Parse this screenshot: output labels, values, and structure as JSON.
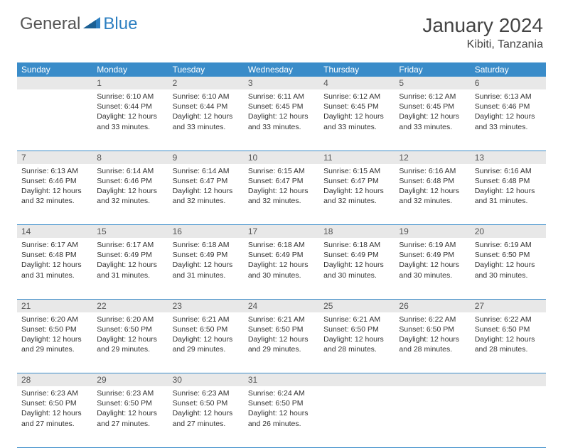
{
  "logo": {
    "general": "General",
    "blue": "Blue"
  },
  "title": "January 2024",
  "location": "Kibiti, Tanzania",
  "colors": {
    "header_bg": "#3a8cc9",
    "header_text": "#ffffff",
    "daynum_bg": "#e8e8e8",
    "rule": "#3a8cc9",
    "logo_blue": "#2d7fc1"
  },
  "weekdays": [
    "Sunday",
    "Monday",
    "Tuesday",
    "Wednesday",
    "Thursday",
    "Friday",
    "Saturday"
  ],
  "weeks": [
    {
      "nums": [
        "",
        "1",
        "2",
        "3",
        "4",
        "5",
        "6"
      ],
      "cells": [
        null,
        {
          "sunrise": "Sunrise: 6:10 AM",
          "sunset": "Sunset: 6:44 PM",
          "day": "Daylight: 12 hours and 33 minutes."
        },
        {
          "sunrise": "Sunrise: 6:10 AM",
          "sunset": "Sunset: 6:44 PM",
          "day": "Daylight: 12 hours and 33 minutes."
        },
        {
          "sunrise": "Sunrise: 6:11 AM",
          "sunset": "Sunset: 6:45 PM",
          "day": "Daylight: 12 hours and 33 minutes."
        },
        {
          "sunrise": "Sunrise: 6:12 AM",
          "sunset": "Sunset: 6:45 PM",
          "day": "Daylight: 12 hours and 33 minutes."
        },
        {
          "sunrise": "Sunrise: 6:12 AM",
          "sunset": "Sunset: 6:45 PM",
          "day": "Daylight: 12 hours and 33 minutes."
        },
        {
          "sunrise": "Sunrise: 6:13 AM",
          "sunset": "Sunset: 6:46 PM",
          "day": "Daylight: 12 hours and 33 minutes."
        }
      ]
    },
    {
      "nums": [
        "7",
        "8",
        "9",
        "10",
        "11",
        "12",
        "13"
      ],
      "cells": [
        {
          "sunrise": "Sunrise: 6:13 AM",
          "sunset": "Sunset: 6:46 PM",
          "day": "Daylight: 12 hours and 32 minutes."
        },
        {
          "sunrise": "Sunrise: 6:14 AM",
          "sunset": "Sunset: 6:46 PM",
          "day": "Daylight: 12 hours and 32 minutes."
        },
        {
          "sunrise": "Sunrise: 6:14 AM",
          "sunset": "Sunset: 6:47 PM",
          "day": "Daylight: 12 hours and 32 minutes."
        },
        {
          "sunrise": "Sunrise: 6:15 AM",
          "sunset": "Sunset: 6:47 PM",
          "day": "Daylight: 12 hours and 32 minutes."
        },
        {
          "sunrise": "Sunrise: 6:15 AM",
          "sunset": "Sunset: 6:47 PM",
          "day": "Daylight: 12 hours and 32 minutes."
        },
        {
          "sunrise": "Sunrise: 6:16 AM",
          "sunset": "Sunset: 6:48 PM",
          "day": "Daylight: 12 hours and 32 minutes."
        },
        {
          "sunrise": "Sunrise: 6:16 AM",
          "sunset": "Sunset: 6:48 PM",
          "day": "Daylight: 12 hours and 31 minutes."
        }
      ]
    },
    {
      "nums": [
        "14",
        "15",
        "16",
        "17",
        "18",
        "19",
        "20"
      ],
      "cells": [
        {
          "sunrise": "Sunrise: 6:17 AM",
          "sunset": "Sunset: 6:48 PM",
          "day": "Daylight: 12 hours and 31 minutes."
        },
        {
          "sunrise": "Sunrise: 6:17 AM",
          "sunset": "Sunset: 6:49 PM",
          "day": "Daylight: 12 hours and 31 minutes."
        },
        {
          "sunrise": "Sunrise: 6:18 AM",
          "sunset": "Sunset: 6:49 PM",
          "day": "Daylight: 12 hours and 31 minutes."
        },
        {
          "sunrise": "Sunrise: 6:18 AM",
          "sunset": "Sunset: 6:49 PM",
          "day": "Daylight: 12 hours and 30 minutes."
        },
        {
          "sunrise": "Sunrise: 6:18 AM",
          "sunset": "Sunset: 6:49 PM",
          "day": "Daylight: 12 hours and 30 minutes."
        },
        {
          "sunrise": "Sunrise: 6:19 AM",
          "sunset": "Sunset: 6:49 PM",
          "day": "Daylight: 12 hours and 30 minutes."
        },
        {
          "sunrise": "Sunrise: 6:19 AM",
          "sunset": "Sunset: 6:50 PM",
          "day": "Daylight: 12 hours and 30 minutes."
        }
      ]
    },
    {
      "nums": [
        "21",
        "22",
        "23",
        "24",
        "25",
        "26",
        "27"
      ],
      "cells": [
        {
          "sunrise": "Sunrise: 6:20 AM",
          "sunset": "Sunset: 6:50 PM",
          "day": "Daylight: 12 hours and 29 minutes."
        },
        {
          "sunrise": "Sunrise: 6:20 AM",
          "sunset": "Sunset: 6:50 PM",
          "day": "Daylight: 12 hours and 29 minutes."
        },
        {
          "sunrise": "Sunrise: 6:21 AM",
          "sunset": "Sunset: 6:50 PM",
          "day": "Daylight: 12 hours and 29 minutes."
        },
        {
          "sunrise": "Sunrise: 6:21 AM",
          "sunset": "Sunset: 6:50 PM",
          "day": "Daylight: 12 hours and 29 minutes."
        },
        {
          "sunrise": "Sunrise: 6:21 AM",
          "sunset": "Sunset: 6:50 PM",
          "day": "Daylight: 12 hours and 28 minutes."
        },
        {
          "sunrise": "Sunrise: 6:22 AM",
          "sunset": "Sunset: 6:50 PM",
          "day": "Daylight: 12 hours and 28 minutes."
        },
        {
          "sunrise": "Sunrise: 6:22 AM",
          "sunset": "Sunset: 6:50 PM",
          "day": "Daylight: 12 hours and 28 minutes."
        }
      ]
    },
    {
      "nums": [
        "28",
        "29",
        "30",
        "31",
        "",
        "",
        ""
      ],
      "cells": [
        {
          "sunrise": "Sunrise: 6:23 AM",
          "sunset": "Sunset: 6:50 PM",
          "day": "Daylight: 12 hours and 27 minutes."
        },
        {
          "sunrise": "Sunrise: 6:23 AM",
          "sunset": "Sunset: 6:50 PM",
          "day": "Daylight: 12 hours and 27 minutes."
        },
        {
          "sunrise": "Sunrise: 6:23 AM",
          "sunset": "Sunset: 6:50 PM",
          "day": "Daylight: 12 hours and 27 minutes."
        },
        {
          "sunrise": "Sunrise: 6:24 AM",
          "sunset": "Sunset: 6:50 PM",
          "day": "Daylight: 12 hours and 26 minutes."
        },
        null,
        null,
        null
      ]
    }
  ]
}
